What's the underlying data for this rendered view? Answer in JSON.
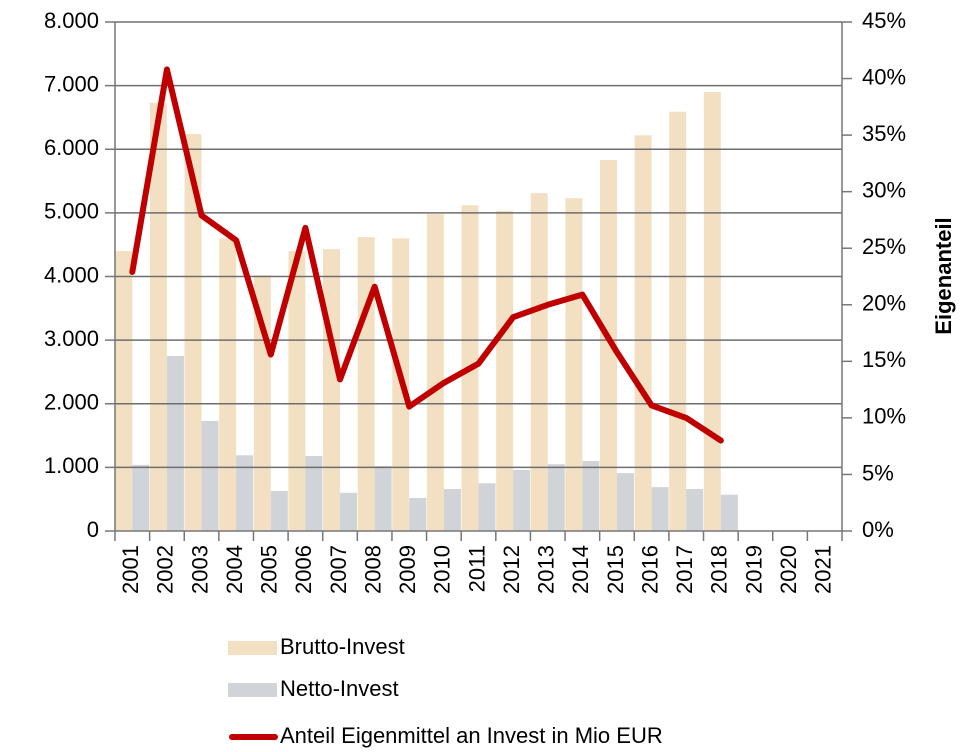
{
  "chart_data": {
    "type": "bar_line",
    "categories": [
      "2001",
      "2002",
      "2003",
      "2004",
      "2005",
      "2006",
      "2007",
      "2008",
      "2009",
      "2010",
      "2011",
      "2012",
      "2013",
      "2014",
      "2015",
      "2016",
      "2017",
      "2018",
      "2019",
      "2020",
      "2021"
    ],
    "series": [
      {
        "name": "Brutto-Invest",
        "type": "bar",
        "color": "#f3e0c2",
        "values": [
          4400,
          6730,
          6240,
          4600,
          4020,
          4400,
          4430,
          4620,
          4600,
          4980,
          5120,
          5030,
          5310,
          5230,
          5830,
          6220,
          6590,
          6900,
          null,
          null,
          null
        ]
      },
      {
        "name": "Netto-Invest",
        "type": "bar",
        "color": "#d0d3d7",
        "values": [
          1040,
          2750,
          1730,
          1190,
          630,
          1180,
          600,
          1020,
          520,
          660,
          750,
          960,
          1050,
          1100,
          910,
          690,
          660,
          570,
          null,
          null,
          null
        ]
      },
      {
        "name": "Anteil Eigenmittel an Invest in Mio EUR",
        "type": "line",
        "color": "#c00000",
        "axis": "y2",
        "values": [
          22.9,
          40.8,
          27.9,
          25.7,
          15.6,
          26.8,
          13.4,
          21.6,
          11.0,
          13.1,
          14.8,
          18.9,
          20.0,
          20.9,
          15.8,
          11.1,
          10.0,
          8.0,
          null,
          null,
          null
        ]
      }
    ],
    "y2_label": "Eigenanteil",
    "ylim": [
      0,
      8000
    ],
    "yticks": [
      0,
      {
        "value": 1000,
        "label": "1.000"
      },
      {
        "value": 2000,
        "label": "2.000"
      },
      {
        "value": 3000,
        "label": "3.000"
      },
      {
        "value": 4000,
        "label": "4.000"
      },
      {
        "value": 5000,
        "label": "5.000"
      },
      {
        "value": 6000,
        "label": "6.000"
      },
      {
        "value": 7000,
        "label": "7.000"
      },
      {
        "value": 8000,
        "label": "8.000"
      }
    ],
    "y2lim": [
      0,
      45
    ],
    "y2ticks": [
      {
        "value": 0,
        "label": "0%"
      },
      {
        "value": 5,
        "label": "5%"
      },
      {
        "value": 10,
        "label": "10%"
      },
      {
        "value": 15,
        "label": "15%"
      },
      {
        "value": 20,
        "label": "20%"
      },
      {
        "value": 25,
        "label": "25%"
      },
      {
        "value": 30,
        "label": "30%"
      },
      {
        "value": 35,
        "label": "35%"
      },
      {
        "value": 40,
        "label": "40%"
      },
      {
        "value": 45,
        "label": "45%"
      }
    ],
    "grid": true,
    "legend": "bottom"
  }
}
